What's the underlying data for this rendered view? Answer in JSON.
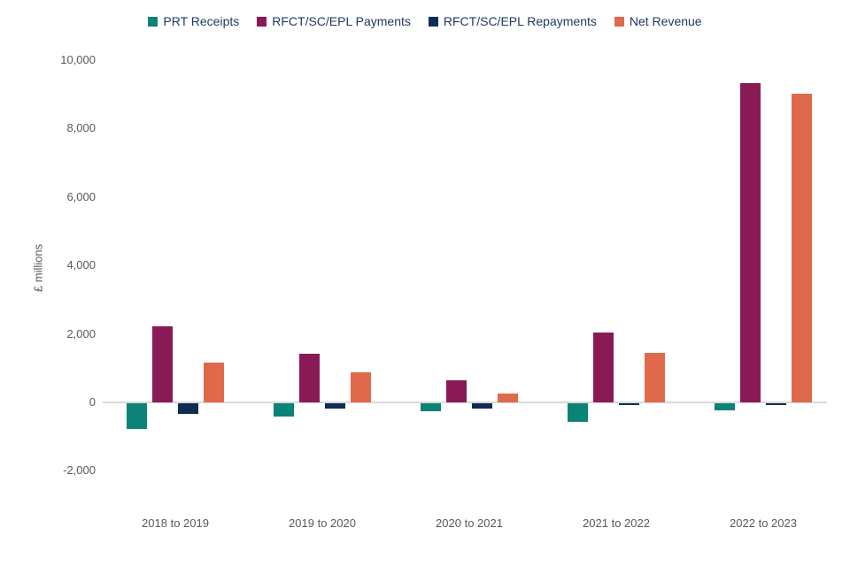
{
  "chart_data": {
    "type": "bar",
    "title": "",
    "xlabel": "",
    "ylabel": "£ millions",
    "categories": [
      "2018 to 2019",
      "2019 to 2020",
      "2020 to 2021",
      "2021 to 2022",
      "2022 to 2023"
    ],
    "series": [
      {
        "name": "PRT Receipts",
        "color": "#0b8376",
        "values": [
          -750,
          -400,
          -230,
          -550,
          -200
        ]
      },
      {
        "name": "RFCT/SC/EPL Payments",
        "color": "#8a1a56",
        "values": [
          2210,
          1420,
          650,
          2040,
          9320
        ]
      },
      {
        "name": "RFCT/SC/EPL Repayments",
        "color": "#0f2d52",
        "values": [
          -300,
          -150,
          -150,
          -50,
          -60
        ]
      },
      {
        "name": "Net Revenue",
        "color": "#e0694b",
        "values": [
          1160,
          870,
          270,
          1440,
          9020
        ]
      }
    ],
    "ylim": [
      -2000,
      10000
    ],
    "yticks": [
      {
        "value": 10000,
        "label": "10,000"
      },
      {
        "value": 8000,
        "label": "8,000"
      },
      {
        "value": 6000,
        "label": "6,000"
      },
      {
        "value": 4000,
        "label": "4,000"
      },
      {
        "value": 2000,
        "label": "2,000"
      },
      {
        "value": 0,
        "label": "0"
      },
      {
        "value": -2000,
        "label": "-2,000"
      }
    ],
    "legend_position": "top",
    "grid": false,
    "colors": {
      "legend_text": "#1f3864",
      "axis_text": "#595959",
      "axis_line": "#d9d9d9",
      "background": "#ffffff"
    }
  }
}
